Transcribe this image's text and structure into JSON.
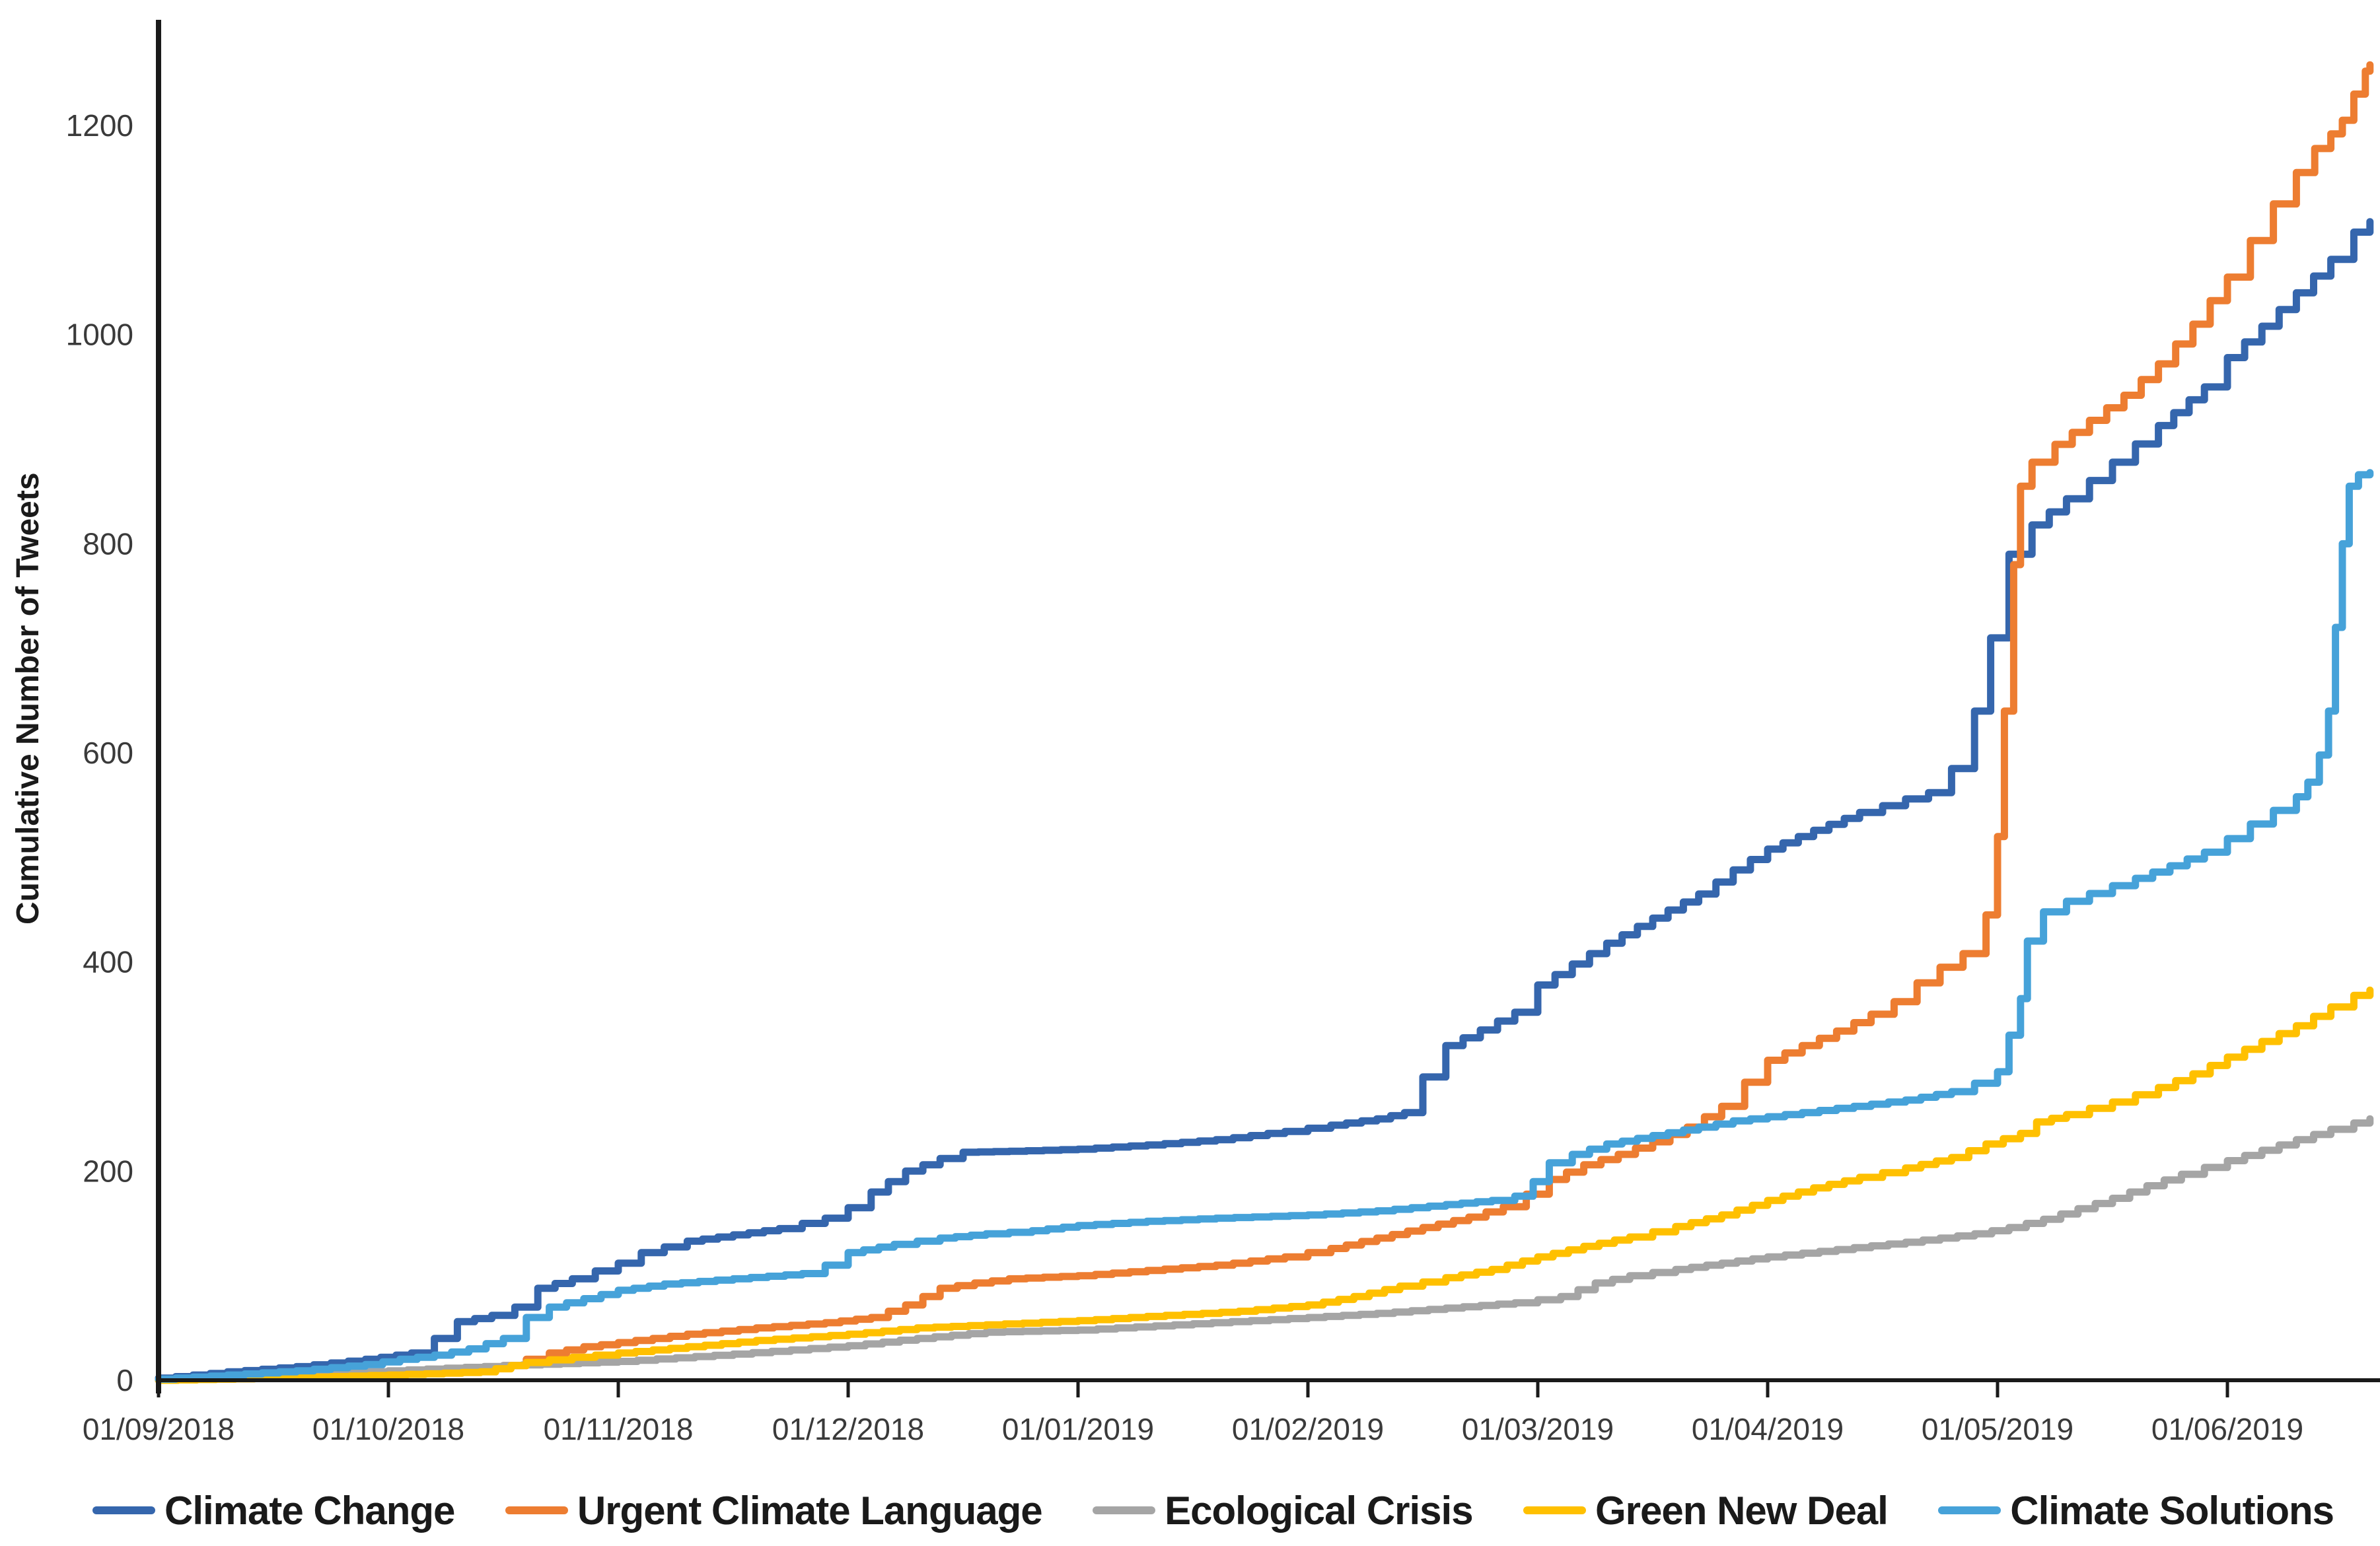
{
  "chart_data": {
    "type": "line",
    "title": "",
    "xlabel": "",
    "ylabel": "Cumulative Number of Tweets",
    "x_unit": "months since 2018-09-01",
    "xlim": [
      0,
      9.66
    ],
    "ylim": [
      0,
      1300
    ],
    "grid": false,
    "legend_position": "bottom",
    "yticks": [
      0,
      200,
      400,
      600,
      800,
      1000,
      1200
    ],
    "xticks": [
      {
        "pos": 0,
        "label": "01/09/2018"
      },
      {
        "pos": 1,
        "label": "01/10/2018"
      },
      {
        "pos": 2,
        "label": "01/11/2018"
      },
      {
        "pos": 3,
        "label": "01/12/2018"
      },
      {
        "pos": 4,
        "label": "01/01/2019"
      },
      {
        "pos": 5,
        "label": "01/02/2019"
      },
      {
        "pos": 6,
        "label": "01/03/2019"
      },
      {
        "pos": 7,
        "label": "01/04/2019"
      },
      {
        "pos": 8,
        "label": "01/05/2019"
      },
      {
        "pos": 9,
        "label": "01/06/2019"
      }
    ],
    "series": [
      {
        "name": "Climate Change",
        "color": "#3566AD",
        "points": [
          [
            0,
            2
          ],
          [
            0.3,
            8
          ],
          [
            0.6,
            13
          ],
          [
            0.9,
            20
          ],
          [
            1.1,
            26
          ],
          [
            1.2,
            40
          ],
          [
            1.3,
            56
          ],
          [
            1.45,
            62
          ],
          [
            1.55,
            70
          ],
          [
            1.65,
            88
          ],
          [
            1.8,
            97
          ],
          [
            2.0,
            112
          ],
          [
            2.1,
            122
          ],
          [
            2.3,
            133
          ],
          [
            2.5,
            139
          ],
          [
            2.7,
            145
          ],
          [
            2.9,
            155
          ],
          [
            3.0,
            165
          ],
          [
            3.1,
            180
          ],
          [
            3.25,
            200
          ],
          [
            3.4,
            212
          ],
          [
            3.5,
            218
          ],
          [
            3.7,
            219
          ],
          [
            4.0,
            221
          ],
          [
            4.3,
            225
          ],
          [
            4.6,
            230
          ],
          [
            4.9,
            238
          ],
          [
            5.1,
            244
          ],
          [
            5.3,
            250
          ],
          [
            5.42,
            256
          ],
          [
            5.5,
            290
          ],
          [
            5.6,
            320
          ],
          [
            5.75,
            335
          ],
          [
            5.9,
            352
          ],
          [
            6.0,
            378
          ],
          [
            6.15,
            398
          ],
          [
            6.3,
            418
          ],
          [
            6.5,
            442
          ],
          [
            6.7,
            465
          ],
          [
            6.85,
            488
          ],
          [
            7.0,
            508
          ],
          [
            7.2,
            526
          ],
          [
            7.4,
            543
          ],
          [
            7.6,
            556
          ],
          [
            7.7,
            562
          ],
          [
            7.8,
            585
          ],
          [
            7.9,
            640
          ],
          [
            7.97,
            710
          ],
          [
            8.05,
            790
          ],
          [
            8.15,
            818
          ],
          [
            8.3,
            843
          ],
          [
            8.5,
            878
          ],
          [
            8.7,
            913
          ],
          [
            8.9,
            950
          ],
          [
            9.0,
            978
          ],
          [
            9.15,
            1008
          ],
          [
            9.3,
            1040
          ],
          [
            9.45,
            1072
          ],
          [
            9.55,
            1098
          ],
          [
            9.62,
            1108
          ]
        ]
      },
      {
        "name": "Urgent Climate Language",
        "color": "#ED7D31",
        "points": [
          [
            0,
            0
          ],
          [
            0.5,
            3
          ],
          [
            1.0,
            6
          ],
          [
            1.3,
            9
          ],
          [
            1.5,
            14
          ],
          [
            1.7,
            26
          ],
          [
            1.85,
            32
          ],
          [
            2.0,
            36
          ],
          [
            2.3,
            44
          ],
          [
            2.6,
            50
          ],
          [
            2.9,
            55
          ],
          [
            3.1,
            60
          ],
          [
            3.25,
            72
          ],
          [
            3.4,
            88
          ],
          [
            3.55,
            93
          ],
          [
            3.7,
            97
          ],
          [
            4.0,
            100
          ],
          [
            4.3,
            105
          ],
          [
            4.6,
            110
          ],
          [
            4.9,
            118
          ],
          [
            5.1,
            126
          ],
          [
            5.3,
            136
          ],
          [
            5.5,
            146
          ],
          [
            5.7,
            156
          ],
          [
            5.85,
            166
          ],
          [
            5.95,
            178
          ],
          [
            6.05,
            192
          ],
          [
            6.2,
            206
          ],
          [
            6.35,
            216
          ],
          [
            6.5,
            228
          ],
          [
            6.65,
            242
          ],
          [
            6.8,
            262
          ],
          [
            6.9,
            285
          ],
          [
            7.0,
            306
          ],
          [
            7.15,
            320
          ],
          [
            7.3,
            334
          ],
          [
            7.45,
            350
          ],
          [
            7.55,
            362
          ],
          [
            7.65,
            380
          ],
          [
            7.75,
            395
          ],
          [
            7.85,
            408
          ],
          [
            7.95,
            445
          ],
          [
            8.0,
            520
          ],
          [
            8.03,
            640
          ],
          [
            8.07,
            780
          ],
          [
            8.1,
            855
          ],
          [
            8.15,
            878
          ],
          [
            8.25,
            895
          ],
          [
            8.4,
            918
          ],
          [
            8.55,
            942
          ],
          [
            8.7,
            972
          ],
          [
            8.85,
            1010
          ],
          [
            9.0,
            1055
          ],
          [
            9.1,
            1090
          ],
          [
            9.2,
            1125
          ],
          [
            9.3,
            1155
          ],
          [
            9.38,
            1178
          ],
          [
            9.45,
            1192
          ],
          [
            9.5,
            1205
          ],
          [
            9.55,
            1230
          ],
          [
            9.6,
            1252
          ],
          [
            9.62,
            1258
          ]
        ]
      },
      {
        "name": "Ecological Crisis",
        "color": "#A5A5A5",
        "points": [
          [
            0,
            0
          ],
          [
            0.5,
            4
          ],
          [
            1.0,
            9
          ],
          [
            1.5,
            14
          ],
          [
            2.0,
            18
          ],
          [
            2.5,
            25
          ],
          [
            3.0,
            33
          ],
          [
            3.3,
            40
          ],
          [
            3.6,
            46
          ],
          [
            4.0,
            48
          ],
          [
            4.5,
            54
          ],
          [
            5.0,
            60
          ],
          [
            5.3,
            64
          ],
          [
            5.6,
            69
          ],
          [
            5.9,
            74
          ],
          [
            6.1,
            80
          ],
          [
            6.25,
            93
          ],
          [
            6.4,
            100
          ],
          [
            6.6,
            106
          ],
          [
            6.8,
            112
          ],
          [
            7.0,
            118
          ],
          [
            7.3,
            125
          ],
          [
            7.6,
            132
          ],
          [
            7.9,
            140
          ],
          [
            8.05,
            146
          ],
          [
            8.2,
            154
          ],
          [
            8.35,
            164
          ],
          [
            8.5,
            174
          ],
          [
            8.65,
            186
          ],
          [
            8.8,
            197
          ],
          [
            9.0,
            210
          ],
          [
            9.15,
            220
          ],
          [
            9.3,
            230
          ],
          [
            9.45,
            240
          ],
          [
            9.55,
            246
          ],
          [
            9.62,
            250
          ]
        ]
      },
      {
        "name": "Green New Deal",
        "color": "#FFC000",
        "points": [
          [
            0,
            0
          ],
          [
            0.5,
            2
          ],
          [
            1.0,
            5
          ],
          [
            1.4,
            8
          ],
          [
            1.6,
            17
          ],
          [
            1.8,
            22
          ],
          [
            2.0,
            26
          ],
          [
            2.3,
            32
          ],
          [
            2.6,
            38
          ],
          [
            3.0,
            44
          ],
          [
            3.3,
            50
          ],
          [
            3.6,
            53
          ],
          [
            4.0,
            57
          ],
          [
            4.3,
            61
          ],
          [
            4.7,
            66
          ],
          [
            5.0,
            72
          ],
          [
            5.2,
            80
          ],
          [
            5.4,
            90
          ],
          [
            5.6,
            98
          ],
          [
            5.8,
            106
          ],
          [
            6.0,
            118
          ],
          [
            6.2,
            128
          ],
          [
            6.4,
            137
          ],
          [
            6.6,
            147
          ],
          [
            6.8,
            158
          ],
          [
            7.0,
            172
          ],
          [
            7.2,
            184
          ],
          [
            7.4,
            194
          ],
          [
            7.6,
            203
          ],
          [
            7.8,
            213
          ],
          [
            7.95,
            226
          ],
          [
            8.1,
            236
          ],
          [
            8.17,
            247
          ],
          [
            8.3,
            254
          ],
          [
            8.5,
            266
          ],
          [
            8.7,
            280
          ],
          [
            8.85,
            293
          ],
          [
            9.0,
            309
          ],
          [
            9.15,
            324
          ],
          [
            9.3,
            339
          ],
          [
            9.45,
            357
          ],
          [
            9.55,
            368
          ],
          [
            9.62,
            373
          ]
        ]
      },
      {
        "name": "Climate Solutions",
        "color": "#46A2D9",
        "points": [
          [
            0,
            1
          ],
          [
            0.3,
            5
          ],
          [
            0.6,
            9
          ],
          [
            0.9,
            15
          ],
          [
            1.05,
            20
          ],
          [
            1.2,
            24
          ],
          [
            1.35,
            30
          ],
          [
            1.5,
            40
          ],
          [
            1.6,
            60
          ],
          [
            1.7,
            70
          ],
          [
            1.85,
            78
          ],
          [
            2.0,
            86
          ],
          [
            2.2,
            92
          ],
          [
            2.5,
            97
          ],
          [
            2.8,
            102
          ],
          [
            2.9,
            110
          ],
          [
            3.0,
            122
          ],
          [
            3.2,
            130
          ],
          [
            3.4,
            136
          ],
          [
            3.6,
            140
          ],
          [
            3.8,
            143
          ],
          [
            4.0,
            148
          ],
          [
            4.3,
            152
          ],
          [
            4.6,
            155
          ],
          [
            5.0,
            158
          ],
          [
            5.3,
            162
          ],
          [
            5.6,
            168
          ],
          [
            5.8,
            172
          ],
          [
            5.9,
            176
          ],
          [
            5.98,
            190
          ],
          [
            6.05,
            208
          ],
          [
            6.15,
            216
          ],
          [
            6.3,
            226
          ],
          [
            6.5,
            234
          ],
          [
            6.7,
            242
          ],
          [
            6.85,
            248
          ],
          [
            7.0,
            252
          ],
          [
            7.3,
            260
          ],
          [
            7.6,
            268
          ],
          [
            7.8,
            276
          ],
          [
            7.9,
            284
          ],
          [
            8.0,
            295
          ],
          [
            8.05,
            330
          ],
          [
            8.1,
            365
          ],
          [
            8.13,
            420
          ],
          [
            8.2,
            448
          ],
          [
            8.3,
            458
          ],
          [
            8.5,
            473
          ],
          [
            8.6,
            480
          ],
          [
            8.75,
            492
          ],
          [
            8.9,
            505
          ],
          [
            9.0,
            518
          ],
          [
            9.1,
            532
          ],
          [
            9.2,
            545
          ],
          [
            9.3,
            558
          ],
          [
            9.35,
            572
          ],
          [
            9.4,
            598
          ],
          [
            9.44,
            640
          ],
          [
            9.47,
            720
          ],
          [
            9.5,
            800
          ],
          [
            9.53,
            855
          ],
          [
            9.57,
            866
          ],
          [
            9.62,
            868
          ]
        ]
      }
    ]
  }
}
